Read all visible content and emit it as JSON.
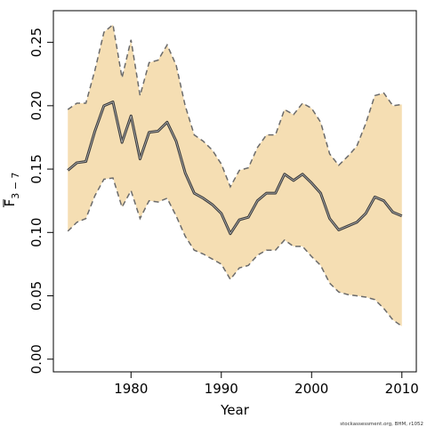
{
  "chart_data": {
    "type": "area",
    "xlabel": "Year",
    "ylabel_main": "F",
    "ylabel_sub": "3 − 7",
    "xlim": [
      1971.4,
      2011.6
    ],
    "ylim": [
      -0.01,
      0.275
    ],
    "xticks": [
      1980,
      1990,
      2000,
      2010
    ],
    "xtick_labels": [
      "1980",
      "1990",
      "2000",
      "2010"
    ],
    "yticks": [
      0.0,
      0.05,
      0.1,
      0.15,
      0.2,
      0.25
    ],
    "ytick_labels": [
      "0.00",
      "0.05",
      "0.10",
      "0.15",
      "0.20",
      "0.25"
    ],
    "grid": false,
    "fill_color": "#f5deb3",
    "line_color": "#3d3d3d",
    "bound_color": "#6b6b6b",
    "x": [
      1973,
      1974,
      1975,
      1976,
      1977,
      1978,
      1979,
      1980,
      1981,
      1982,
      1983,
      1984,
      1985,
      1986,
      1987,
      1988,
      1989,
      1990,
      1991,
      1992,
      1993,
      1994,
      1995,
      1996,
      1997,
      1998,
      1999,
      2000,
      2001,
      2002,
      2003,
      2004,
      2005,
      2006,
      2007,
      2008,
      2009,
      2010
    ],
    "series": [
      {
        "values": [
          0.149,
          0.155,
          0.156,
          0.18,
          0.2,
          0.203,
          0.171,
          0.192,
          0.158,
          0.179,
          0.18,
          0.187,
          0.172,
          0.147,
          0.131,
          0.127,
          0.122,
          0.115,
          0.099,
          0.11,
          0.112,
          0.125,
          0.131,
          0.131,
          0.146,
          0.141,
          0.146,
          0.139,
          0.131,
          0.111,
          0.102,
          0.105,
          0.108,
          0.115,
          0.128,
          0.125,
          0.116,
          0.113
        ]
      },
      {
        "values": [
          0.197,
          0.202,
          0.202,
          0.228,
          0.258,
          0.264,
          0.222,
          0.252,
          0.208,
          0.234,
          0.236,
          0.248,
          0.232,
          0.2,
          0.177,
          0.172,
          0.165,
          0.154,
          0.136,
          0.149,
          0.151,
          0.167,
          0.177,
          0.177,
          0.197,
          0.193,
          0.202,
          0.198,
          0.187,
          0.162,
          0.153,
          0.16,
          0.168,
          0.186,
          0.208,
          0.21,
          0.2,
          0.201
        ]
      },
      {
        "values": [
          0.101,
          0.108,
          0.111,
          0.129,
          0.142,
          0.143,
          0.12,
          0.133,
          0.111,
          0.125,
          0.124,
          0.127,
          0.113,
          0.097,
          0.086,
          0.083,
          0.079,
          0.075,
          0.063,
          0.072,
          0.074,
          0.082,
          0.086,
          0.086,
          0.094,
          0.089,
          0.089,
          0.081,
          0.074,
          0.06,
          0.053,
          0.051,
          0.05,
          0.049,
          0.047,
          0.04,
          0.031,
          0.026
        ]
      }
    ]
  },
  "credit": "stockassessment.org, BHM, r1052"
}
